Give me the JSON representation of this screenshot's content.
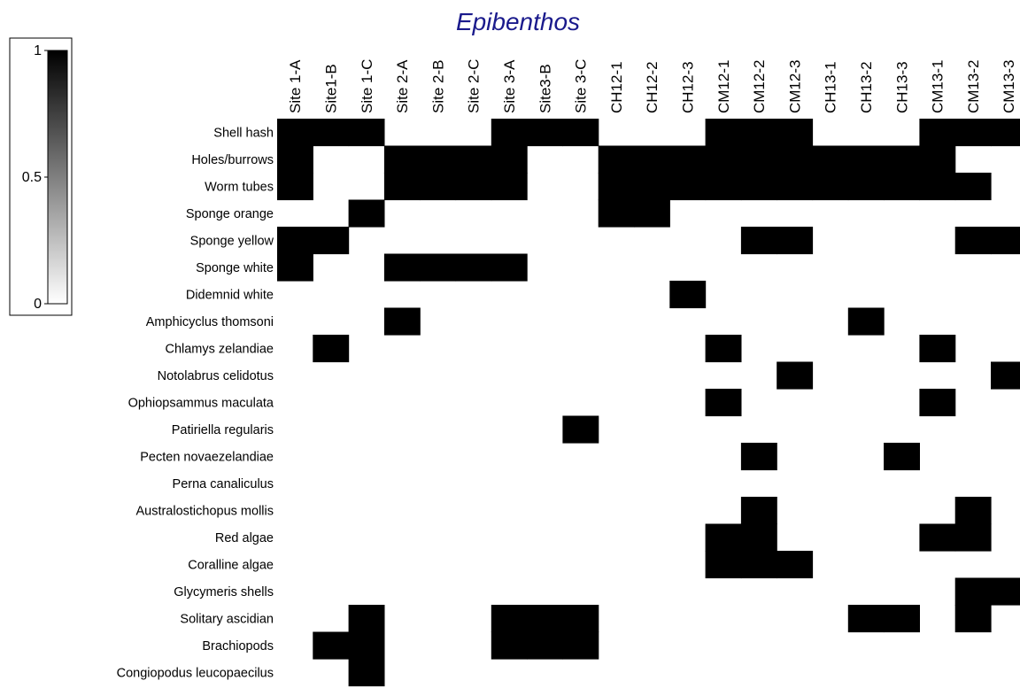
{
  "chart_data": {
    "type": "heatmap",
    "title": "Epibenthos",
    "columns": [
      "Site 1-A",
      "Site1-B",
      "Site 1-C",
      "Site 2-A",
      "Site 2-B",
      "Site 2-C",
      "Site 3-A",
      "Site3-B",
      "Site 3-C",
      "CH12-1",
      "CH12-2",
      "CH12-3",
      "CM12-1",
      "CM12-2",
      "CM12-3",
      "CH13-1",
      "CH13-2",
      "CH13-3",
      "CM13-1",
      "CM13-2",
      "CM13-3"
    ],
    "rows": [
      "Shell hash",
      "Holes/burrows",
      "Worm tubes",
      "Sponge orange",
      "Sponge yellow",
      "Sponge white",
      "Didemnid white",
      "Amphicyclus thomsoni",
      "Chlamys zelandiae",
      "Notolabrus celidotus",
      "Ophiopsammus maculata",
      "Patiriella regularis",
      "Pecten novaezelandiae",
      "Perna canaliculus",
      "Australostichopus mollis",
      "Red algae",
      "Coralline algae",
      "Glycymeris shells",
      "Solitary ascidian",
      "Brachiopods",
      "Congiopodus leucopaecilus"
    ],
    "values": [
      [
        1,
        1,
        1,
        0,
        0,
        0,
        1,
        1,
        1,
        0,
        0,
        0,
        1,
        1,
        1,
        0,
        0,
        0,
        1,
        1,
        1
      ],
      [
        1,
        0,
        0,
        1,
        1,
        1,
        1,
        0,
        0,
        1,
        1,
        1,
        1,
        1,
        1,
        1,
        1,
        1,
        1,
        0,
        0
      ],
      [
        1,
        0,
        0,
        1,
        1,
        1,
        1,
        0,
        0,
        1,
        1,
        1,
        1,
        1,
        1,
        1,
        1,
        1,
        1,
        1,
        0
      ],
      [
        0,
        0,
        1,
        0,
        0,
        0,
        0,
        0,
        0,
        1,
        1,
        0,
        0,
        0,
        0,
        0,
        0,
        0,
        0,
        0,
        0
      ],
      [
        1,
        1,
        0,
        0,
        0,
        0,
        0,
        0,
        0,
        0,
        0,
        0,
        0,
        1,
        1,
        0,
        0,
        0,
        0,
        1,
        1
      ],
      [
        1,
        0,
        0,
        1,
        1,
        1,
        1,
        0,
        0,
        0,
        0,
        0,
        0,
        0,
        0,
        0,
        0,
        0,
        0,
        0,
        0
      ],
      [
        0,
        0,
        0,
        0,
        0,
        0,
        0,
        0,
        0,
        0,
        0,
        1,
        0,
        0,
        0,
        0,
        0,
        0,
        0,
        0,
        0
      ],
      [
        0,
        0,
        0,
        1,
        0,
        0,
        0,
        0,
        0,
        0,
        0,
        0,
        0,
        0,
        0,
        0,
        1,
        0,
        0,
        0,
        0
      ],
      [
        0,
        1,
        0,
        0,
        0,
        0,
        0,
        0,
        0,
        0,
        0,
        0,
        1,
        0,
        0,
        0,
        0,
        0,
        1,
        0,
        0
      ],
      [
        0,
        0,
        0,
        0,
        0,
        0,
        0,
        0,
        0,
        0,
        0,
        0,
        0,
        0,
        1,
        0,
        0,
        0,
        0,
        0,
        1
      ],
      [
        0,
        0,
        0,
        0,
        0,
        0,
        0,
        0,
        0,
        0,
        0,
        0,
        1,
        0,
        0,
        0,
        0,
        0,
        1,
        0,
        0
      ],
      [
        0,
        0,
        0,
        0,
        0,
        0,
        0,
        0,
        1,
        0,
        0,
        0,
        0,
        0,
        0,
        0,
        0,
        0,
        0,
        0,
        0
      ],
      [
        0,
        0,
        0,
        0,
        0,
        0,
        0,
        0,
        0,
        0,
        0,
        0,
        0,
        1,
        0,
        0,
        0,
        1,
        0,
        0,
        0
      ],
      [
        0,
        0,
        0,
        0,
        0,
        0,
        0,
        0,
        0,
        0,
        0,
        0,
        0,
        0,
        0,
        0,
        0,
        0,
        0,
        0,
        0
      ],
      [
        0,
        0,
        0,
        0,
        0,
        0,
        0,
        0,
        0,
        0,
        0,
        0,
        0,
        1,
        0,
        0,
        0,
        0,
        0,
        1,
        0
      ],
      [
        0,
        0,
        0,
        0,
        0,
        0,
        0,
        0,
        0,
        0,
        0,
        0,
        1,
        1,
        0,
        0,
        0,
        0,
        1,
        1,
        0
      ],
      [
        0,
        0,
        0,
        0,
        0,
        0,
        0,
        0,
        0,
        0,
        0,
        0,
        1,
        1,
        1,
        0,
        0,
        0,
        0,
        0,
        0
      ],
      [
        0,
        0,
        0,
        0,
        0,
        0,
        0,
        0,
        0,
        0,
        0,
        0,
        0,
        0,
        0,
        0,
        0,
        0,
        0,
        1,
        1
      ],
      [
        0,
        0,
        1,
        0,
        0,
        0,
        1,
        1,
        1,
        0,
        0,
        0,
        0,
        0,
        0,
        0,
        1,
        1,
        0,
        1,
        0
      ],
      [
        0,
        1,
        1,
        0,
        0,
        0,
        1,
        1,
        1,
        0,
        0,
        0,
        0,
        0,
        0,
        0,
        0,
        0,
        0,
        0,
        0
      ],
      [
        0,
        0,
        1,
        0,
        0,
        0,
        0,
        0,
        0,
        0,
        0,
        0,
        0,
        0,
        0,
        0,
        0,
        0,
        0,
        0,
        0
      ]
    ],
    "color_scale": {
      "min": 0,
      "max": 1,
      "ticks": [
        "0",
        "0.5",
        "1"
      ],
      "low_color": "#ffffff",
      "high_color": "#000000"
    },
    "title_color": "#1a1a8c",
    "cell_color": "#000000"
  }
}
